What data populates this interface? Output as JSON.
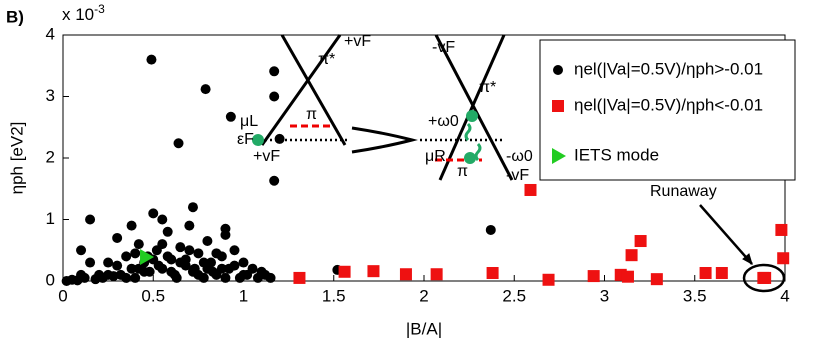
{
  "panel_label": "B)",
  "chart_data": {
    "type": "scatter",
    "x_label": "|B/A|",
    "y_label": "ηph [eV2]",
    "y_multiplier": "x 10",
    "y_multiplier_exp": "-3",
    "xlim": [
      0,
      4
    ],
    "ylim": [
      0,
      4
    ],
    "xticks": [
      0,
      0.5,
      1,
      1.5,
      2,
      2.5,
      3,
      3.5,
      4
    ],
    "yticks": [
      0,
      1,
      2,
      3,
      4
    ],
    "grid": false,
    "legend_position": "upper right",
    "series": [
      {
        "name": "ηel(|Va|=0.5V)/ηph>-0.01",
        "color": "#000000",
        "marker": "circle",
        "x": [
          0.02,
          0.05,
          0.08,
          0.1,
          0.12,
          0.15,
          0.18,
          0.2,
          0.22,
          0.25,
          0.28,
          0.3,
          0.32,
          0.35,
          0.38,
          0.4,
          0.42,
          0.45,
          0.48,
          0.5,
          0.52,
          0.55,
          0.58,
          0.6,
          0.62,
          0.65,
          0.68,
          0.7,
          0.72,
          0.75,
          0.78,
          0.8,
          0.82,
          0.85,
          0.88,
          0.9,
          0.92,
          0.95,
          0.98,
          1.0,
          1.02,
          1.05,
          1.08,
          1.1,
          1.12,
          1.15,
          0.3,
          0.35,
          0.4,
          0.45,
          0.5,
          0.55,
          0.6,
          0.65,
          0.7,
          0.75,
          0.8,
          0.85,
          0.9,
          0.95,
          1.0,
          0.25,
          0.42,
          0.47,
          0.53,
          0.58,
          0.63,
          0.68,
          0.73,
          0.78,
          0.83,
          0.88,
          0.1,
          0.15,
          0.38,
          0.49,
          0.79,
          0.93,
          1.17,
          1.17,
          1.17,
          1.2,
          0.64,
          2.37,
          1.52,
          0.55,
          0.72,
          0.9
        ],
        "y": [
          0,
          0.02,
          0.01,
          0.5,
          0.05,
          1.0,
          0.03,
          0.1,
          0.05,
          0.3,
          0.08,
          0.7,
          0.1,
          0.4,
          0.2,
          0.05,
          0.6,
          0.3,
          0.15,
          1.1,
          0.5,
          0.2,
          0.8,
          0.35,
          0.1,
          0.55,
          0.25,
          0.9,
          0.15,
          0.45,
          0.05,
          0.65,
          0.3,
          0.1,
          0.4,
          0.75,
          0.2,
          0.5,
          0.05,
          0.3,
          0.1,
          0.2,
          0.05,
          0.15,
          0.1,
          0.05,
          0.25,
          0.05,
          0.45,
          0.15,
          0.35,
          0.6,
          0.15,
          0.3,
          0.5,
          0.1,
          0.2,
          0.45,
          0.05,
          0.25,
          0.1,
          0.1,
          0.2,
          0.4,
          0.25,
          0.4,
          0.05,
          0.35,
          0.2,
          0.3,
          0.15,
          0.2,
          0.1,
          0.3,
          0.9,
          3.6,
          3.12,
          2.67,
          3.41,
          3.0,
          1.63,
          2.31,
          2.24,
          0.83,
          0.18,
          1.0,
          1.2,
          0.85
        ]
      },
      {
        "name": "ηel(|Va|=0.5V)/ηph<-0.01",
        "color": "#ee1111",
        "marker": "square",
        "x": [
          1.31,
          1.56,
          1.72,
          1.9,
          2.07,
          2.38,
          2.59,
          2.69,
          2.94,
          3.09,
          3.13,
          3.15,
          3.2,
          3.29,
          3.56,
          3.65,
          3.88,
          3.89,
          3.98,
          3.99
        ],
        "y": [
          0.05,
          0.15,
          0.16,
          0.11,
          0.11,
          0.13,
          1.48,
          0.02,
          0.08,
          0.1,
          0.07,
          0.42,
          0.65,
          0.03,
          0.13,
          0.13,
          0.05,
          0.05,
          0.83,
          0.37
        ]
      },
      {
        "name": "IETS mode",
        "color": "#22cc22",
        "marker": "triangle",
        "x": [
          0.46
        ],
        "y": [
          0.39
        ]
      }
    ],
    "annotations": [
      "π*",
      "+vF",
      "μL",
      "π",
      "εF",
      "+vF",
      "-vF",
      "π*",
      "+ω0",
      "μR",
      "-ω0",
      "π",
      "-vF",
      "Runaway"
    ]
  }
}
